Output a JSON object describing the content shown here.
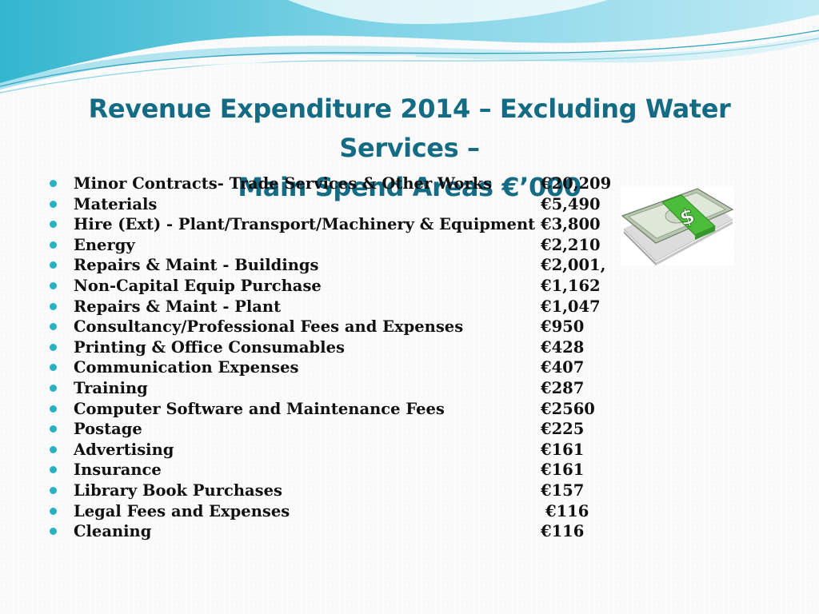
{
  "slide": {
    "title_lines": [
      "Revenue Expenditure 2014 – Excluding Water Services –",
      "Main Spend Areas €’000"
    ],
    "items": [
      {
        "label": "Minor Contracts- Trade Services & Other Works",
        "amount": "€20,209"
      },
      {
        "label": "Materials",
        "amount": "€5,490"
      },
      {
        "label": "Hire (Ext) - Plant/Transport/Machinery & Equipment",
        "amount": "€3,800"
      },
      {
        "label": "Energy",
        "amount": "€2,210"
      },
      {
        "label": "Repairs & Maint - Buildings",
        "amount": "€2,001,"
      },
      {
        "label": "Non-Capital Equip Purchase",
        "amount": "€1,162"
      },
      {
        "label": "Repairs & Maint - Plant",
        "amount": "€1,047"
      },
      {
        "label": "Consultancy/Professional Fees and Expenses",
        "amount": "€950"
      },
      {
        "label": "Printing & Office Consumables",
        "amount": "€428"
      },
      {
        "label": "Communication Expenses",
        "amount": "€407"
      },
      {
        "label": "Training",
        "amount": "€287"
      },
      {
        "label": "Computer Software and Maintenance Fees",
        "amount": "€2560"
      },
      {
        "label": "Postage",
        "amount": "€225"
      },
      {
        "label": "Advertising",
        "amount": "€161"
      },
      {
        "label": "Insurance",
        "amount": "€161"
      },
      {
        "label": "Library Book Purchases",
        "amount": "€157"
      },
      {
        "label": "Legal Fees and Expenses",
        "amount": "€116"
      },
      {
        "label": "Cleaning",
        "amount": "€116"
      }
    ],
    "colors": {
      "title": "#136b84",
      "bullet": "#28b0c3",
      "text": "#111111"
    },
    "icons": {
      "decoration": "wave-header",
      "picture": "money-stack-icon",
      "picture_symbol": "$"
    }
  }
}
